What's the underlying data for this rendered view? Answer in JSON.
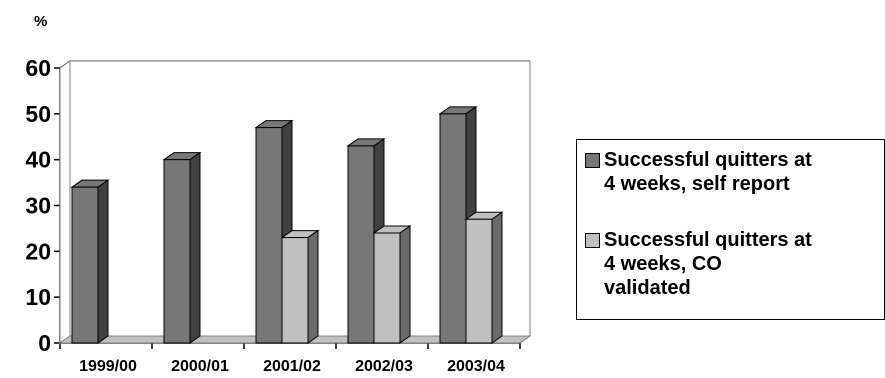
{
  "chart_data": {
    "type": "bar",
    "subtype": "3d-clustered",
    "ylabel": "%",
    "ylim": [
      0,
      60
    ],
    "yticks": [
      0,
      10,
      20,
      30,
      40,
      50,
      60
    ],
    "grid": true,
    "legend_position": "right",
    "categories": [
      "1999/00",
      "2000/01",
      "2001/02",
      "2002/03",
      "2003/04"
    ],
    "series": [
      {
        "name": "Successful quitters at\n4 weeks, self report",
        "color": "#777777",
        "values": [
          34,
          40,
          47,
          43,
          50
        ]
      },
      {
        "name": "Successful quitters at\n4 weeks, CO\nvalidated",
        "color": "#c0c0c0",
        "values": [
          null,
          null,
          23,
          24,
          27
        ]
      }
    ]
  }
}
